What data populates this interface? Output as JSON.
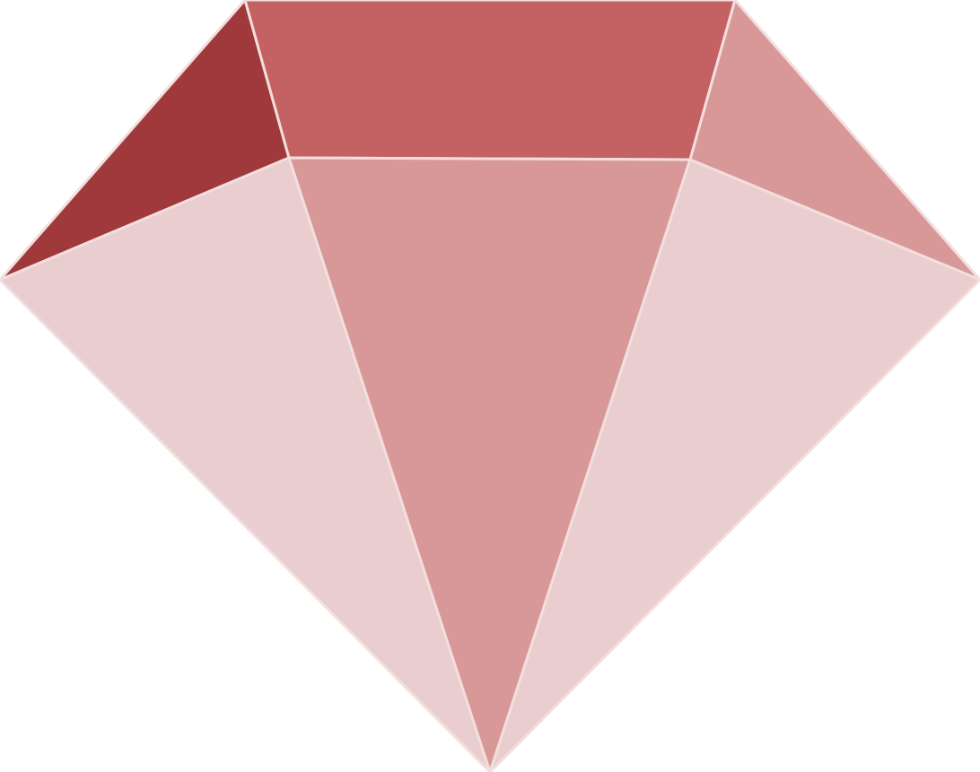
{
  "illustration": {
    "icon": "gem-icon",
    "colors": {
      "background": "#ffffff",
      "separator": "#f3dede",
      "crown_left": "#a0393b",
      "crown_top": "#c46263",
      "crown_right": "#d99898",
      "pavilion_left": "#eacdce",
      "pavilion_center": "#d99898",
      "pavilion_right": "#eacdce"
    }
  }
}
